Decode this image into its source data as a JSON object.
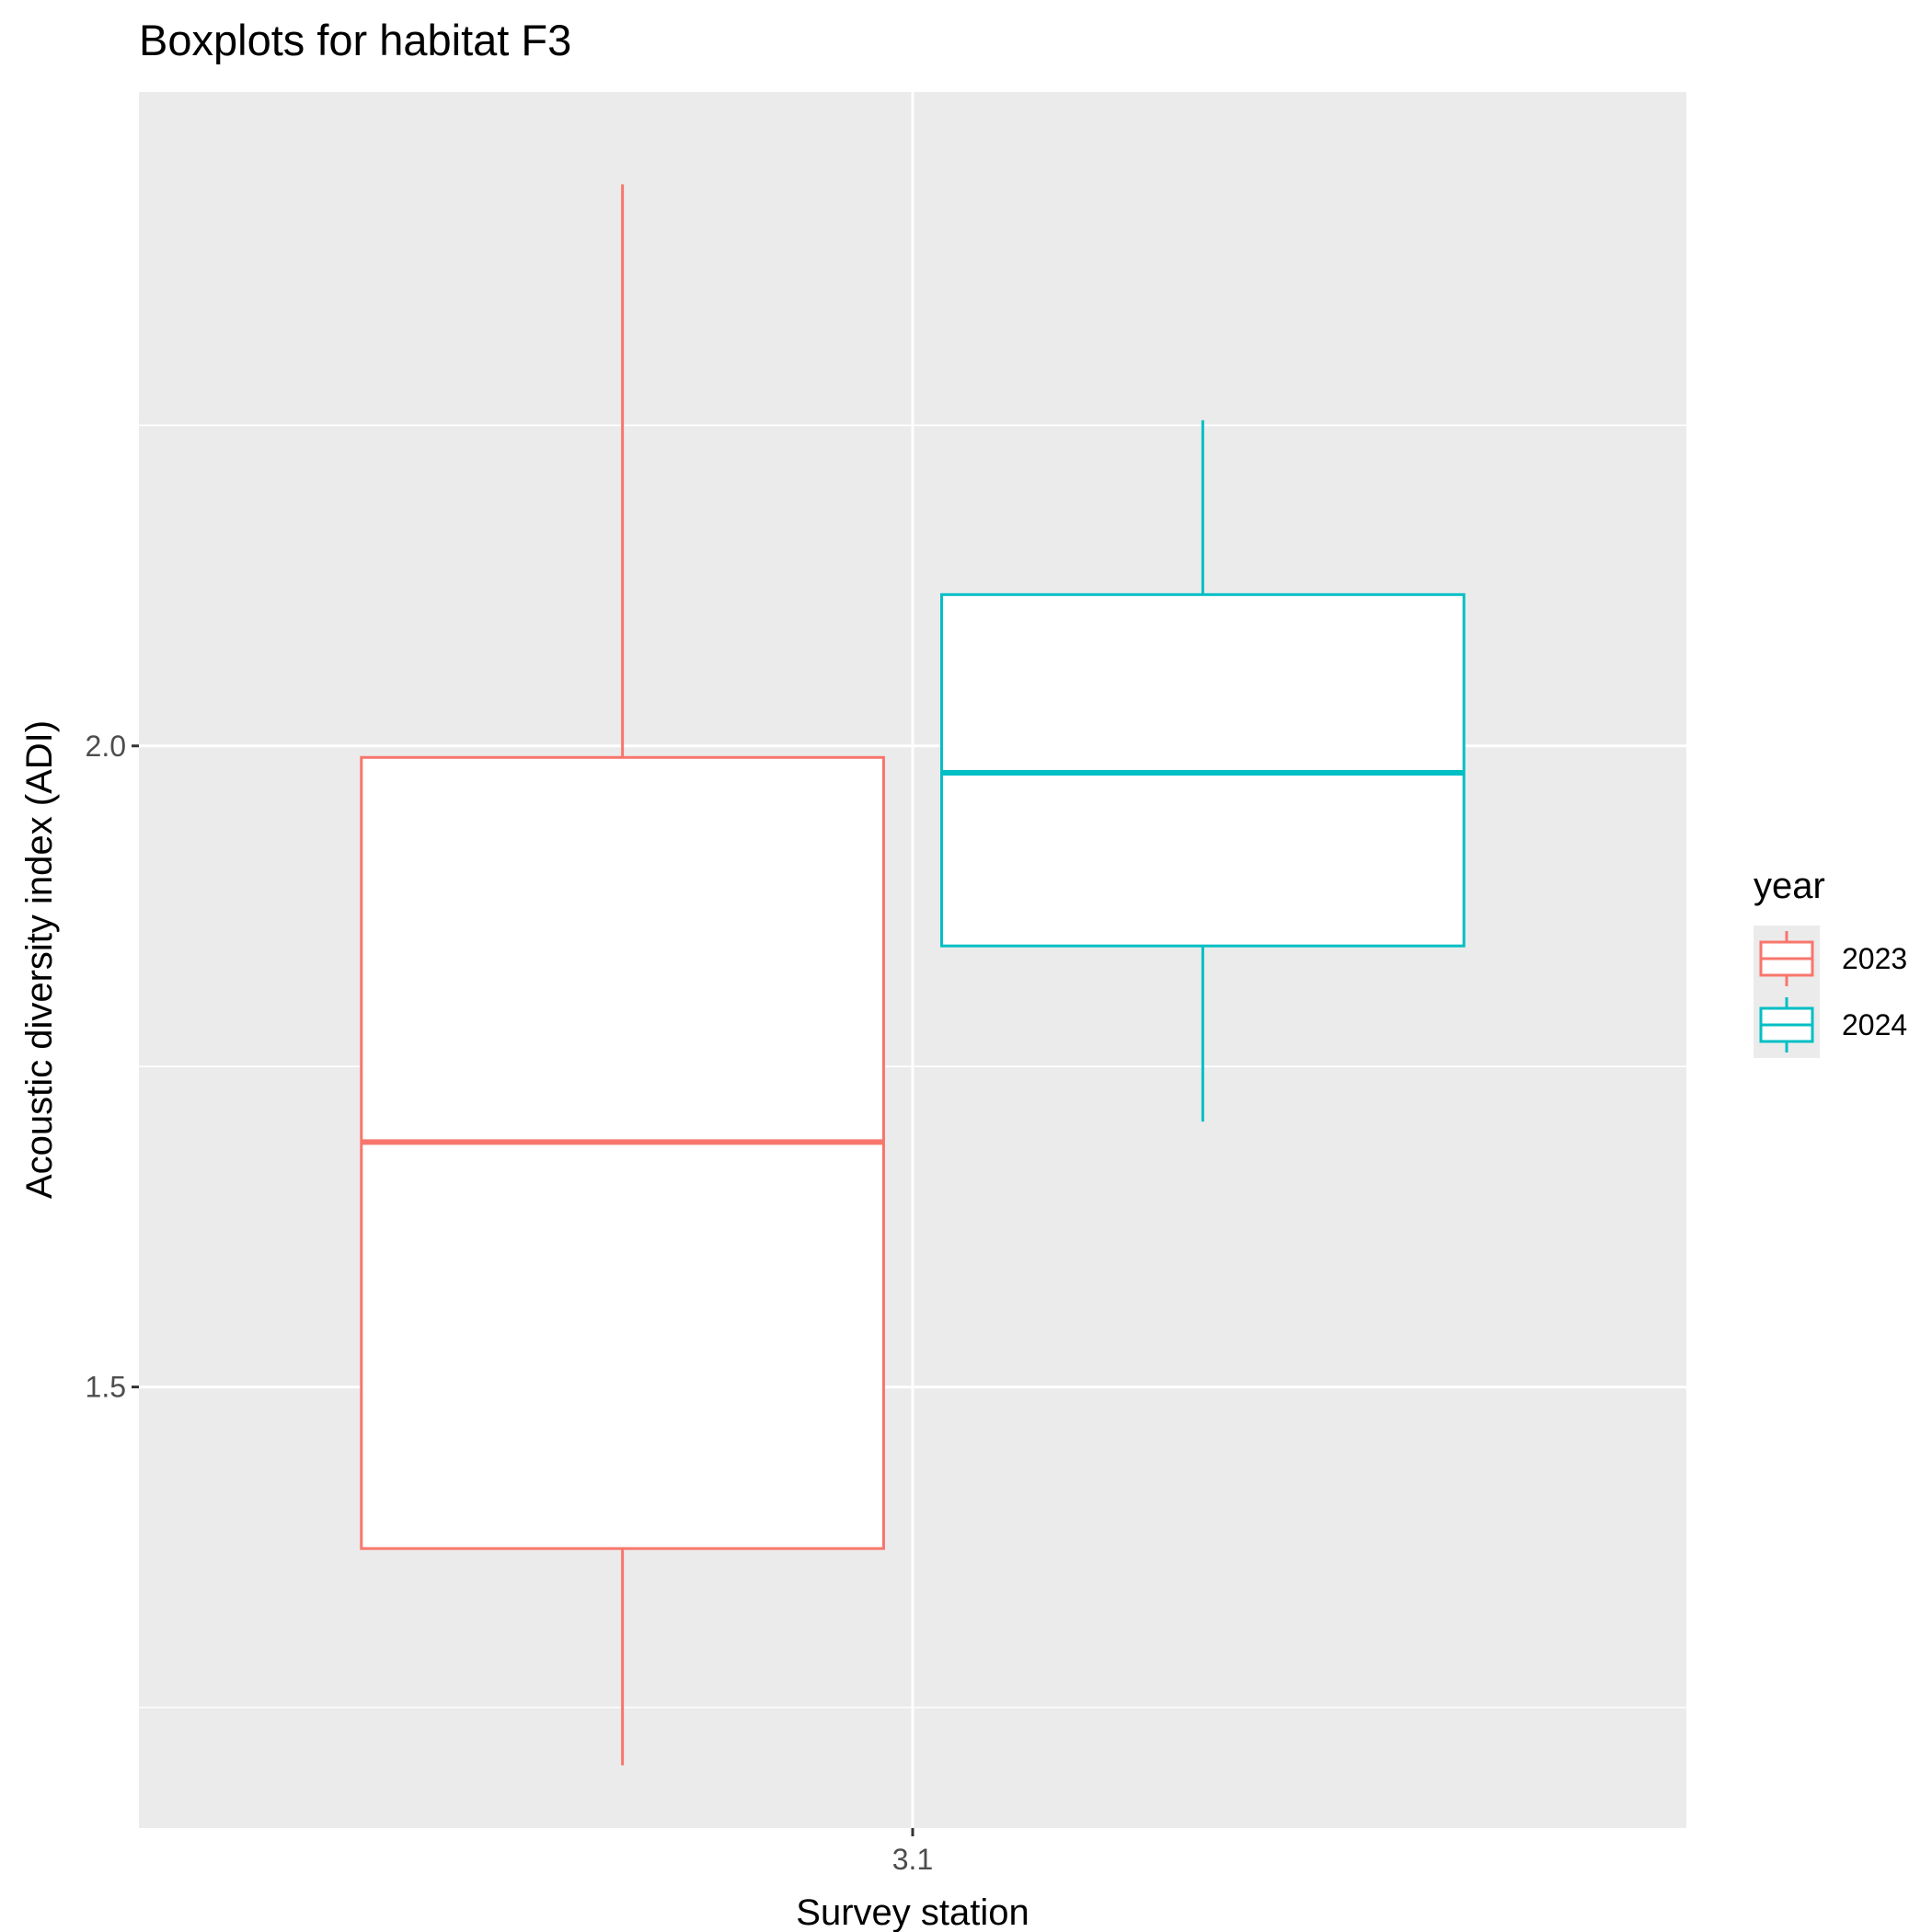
{
  "chart_data": {
    "type": "boxplot",
    "title": "Boxplots for habitat F3",
    "xlabel": "Survey station",
    "ylabel": "Acoustic diversity index (ADI)",
    "categories": [
      "3.1"
    ],
    "ylim": [
      1.156,
      2.51
    ],
    "y_ticks": [
      {
        "value": 1.5,
        "label": "1.5"
      },
      {
        "value": 2.0,
        "label": "2.0"
      }
    ],
    "y_minor_ticks": [
      1.25,
      1.75,
      2.25
    ],
    "grid": true,
    "legend": {
      "title": "year",
      "position": "right",
      "entries": [
        "2023",
        "2024"
      ]
    },
    "series": [
      {
        "name": "2023",
        "color": "#F8766D",
        "boxes": [
          {
            "category": "3.1",
            "whisker_low": 1.205,
            "q1": 1.374,
            "median": 1.691,
            "q3": 1.991,
            "whisker_high": 2.438
          }
        ]
      },
      {
        "name": "2024",
        "color": "#00BFC4",
        "boxes": [
          {
            "category": "3.1",
            "whisker_low": 1.707,
            "q1": 1.844,
            "median": 1.979,
            "q3": 2.118,
            "whisker_high": 2.254
          }
        ]
      }
    ]
  }
}
